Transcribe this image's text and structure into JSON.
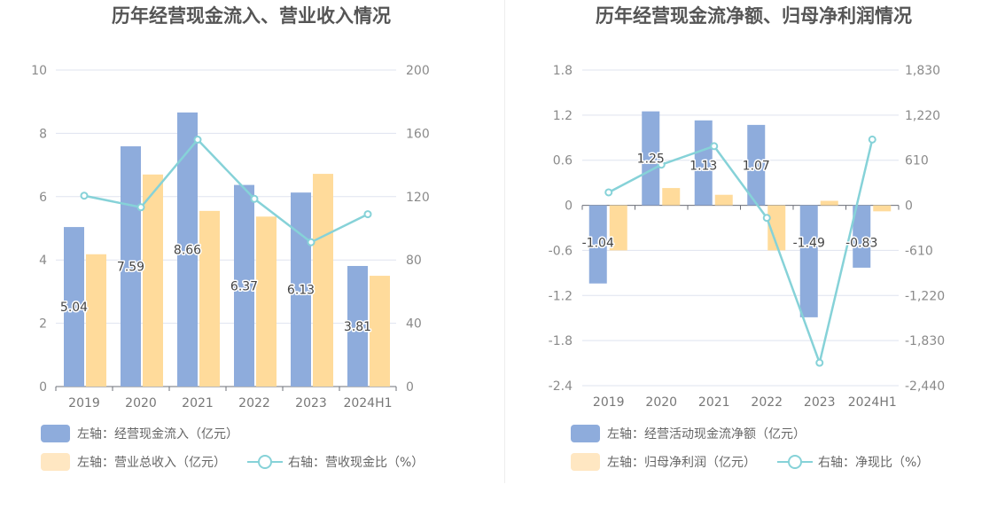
{
  "colors": {
    "bar_primary": "#8eacdc",
    "bar_secondary": "#ffdb9b",
    "bar_primary_legend": "#8eacdc",
    "bar_secondary_legend": "#ffe7c2",
    "line": "#86d2d8",
    "grid": "#dfe3ef"
  },
  "chart_data": [
    {
      "type": "bar+line",
      "title": "历年经营现金流入、营业收入情况",
      "categories": [
        "2019",
        "2020",
        "2021",
        "2022",
        "2023",
        "2024H1"
      ],
      "left_axis": {
        "ticks": [
          "10",
          "8",
          "6",
          "4",
          "2",
          "0"
        ],
        "range": [
          0,
          10
        ]
      },
      "right_axis": {
        "ticks": [
          "200",
          "160",
          "120",
          "80",
          "40",
          "0"
        ],
        "range": [
          0,
          200
        ]
      },
      "series": [
        {
          "name": "左轴：经营现金流入（亿元）",
          "axis": "left",
          "kind": "bar",
          "values": [
            5.04,
            7.59,
            8.66,
            6.37,
            6.13,
            3.81
          ],
          "labels": [
            "5.04",
            "7.59",
            "8.66",
            "6.37",
            "6.13",
            "3.81"
          ]
        },
        {
          "name": "左轴：营业总收入（亿元）",
          "axis": "left",
          "kind": "bar",
          "values": [
            4.18,
            6.7,
            5.55,
            5.37,
            6.72,
            3.5
          ]
        },
        {
          "name": "右轴：营收现金比（%）",
          "axis": "right",
          "kind": "line",
          "values": [
            120.6,
            113.3,
            156.0,
            118.6,
            91.2,
            108.9
          ]
        }
      ],
      "legend": [
        "左轴：经营现金流入（亿元）",
        "左轴：营业总收入（亿元）",
        "右轴：营收现金比（%）"
      ]
    },
    {
      "type": "bar+line",
      "title": "历年经营现金流净额、归母净利润情况",
      "categories": [
        "2019",
        "2020",
        "2021",
        "2022",
        "2023",
        "2024H1"
      ],
      "left_axis": {
        "ticks": [
          "1.8",
          "1.2",
          "0.6",
          "0",
          "-0.6",
          "-1.2",
          "-1.8",
          "-2.4"
        ],
        "range": [
          -2.4,
          1.8
        ]
      },
      "right_axis": {
        "ticks": [
          "1,830",
          "1,220",
          "610",
          "0",
          "-610",
          "-1,220",
          "-1,830",
          "-2,440"
        ],
        "range": [
          -2440,
          1830
        ]
      },
      "series": [
        {
          "name": "左轴：经营活动现金流净额（亿元）",
          "axis": "left",
          "kind": "bar",
          "values": [
            -1.04,
            1.25,
            1.13,
            1.07,
            -1.49,
            -0.83
          ],
          "labels": [
            "-1.04",
            "1.25",
            "1.13",
            "1.07",
            "-1.49",
            "-0.83"
          ]
        },
        {
          "name": "左轴：归母净利润（亿元）",
          "axis": "left",
          "kind": "bar",
          "values": [
            -0.6,
            0.23,
            0.14,
            -0.6,
            0.06,
            -0.08
          ]
        },
        {
          "name": "右轴：净现比（%）",
          "axis": "right",
          "kind": "line",
          "values": [
            175,
            550,
            800,
            -170,
            -2130,
            890
          ]
        }
      ],
      "legend": [
        "左轴：经营活动现金流净额（亿元）",
        "左轴：归母净利润（亿元）",
        "右轴：净现比（%）"
      ]
    }
  ]
}
